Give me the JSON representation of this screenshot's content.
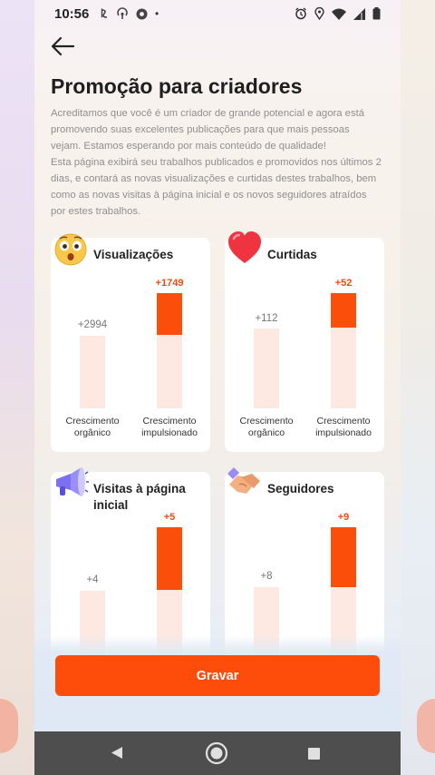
{
  "status": {
    "time": "10:56",
    "dot": "•",
    "left_icons": [
      "notification-a-icon",
      "hotspot-icon",
      "chrome-icon"
    ],
    "right_icons": [
      "alarm-icon",
      "location-icon",
      "wifi-icon",
      "signal-icon",
      "battery-icon"
    ]
  },
  "header": {
    "title": "Promoção para criadores"
  },
  "intro": {
    "p1": "Acreditamos que você é um criador de grande potencial e agora está promovendo suas excelentes publicações para que mais pessoas vejam. Estamos esperando por mais conteúdo de qualidade!",
    "p2": "Esta página exibirá seu trabalhos publicados e promovidos nos últimos 2 dias, e contará as novas visualizações e curtidas destes trabalhos, bem como as novas visitas à página inicial e os novos seguidores atraídos por estes trabalhos."
  },
  "labels": {
    "organic": "Crescimento orgânico",
    "boosted": "Crescimento impulsionado"
  },
  "cards": [
    {
      "title": "Visualizações",
      "icon": "surprised-face-icon",
      "organic": "+2994",
      "boosted": "+1749"
    },
    {
      "title": "Curtidas",
      "icon": "heart-icon",
      "organic": "+112",
      "boosted": "+52"
    },
    {
      "title": "Visitas à página inicial",
      "icon": "megaphone-icon",
      "organic": "+4",
      "boosted": "+5"
    },
    {
      "title": "Seguidores",
      "icon": "handshake-icon",
      "organic": "+8",
      "boosted": "+9"
    }
  ],
  "footer": {
    "save_label": "Gravar"
  },
  "colors": {
    "accent": "#fe4c0b",
    "bar_light": "#fde9e2"
  }
}
